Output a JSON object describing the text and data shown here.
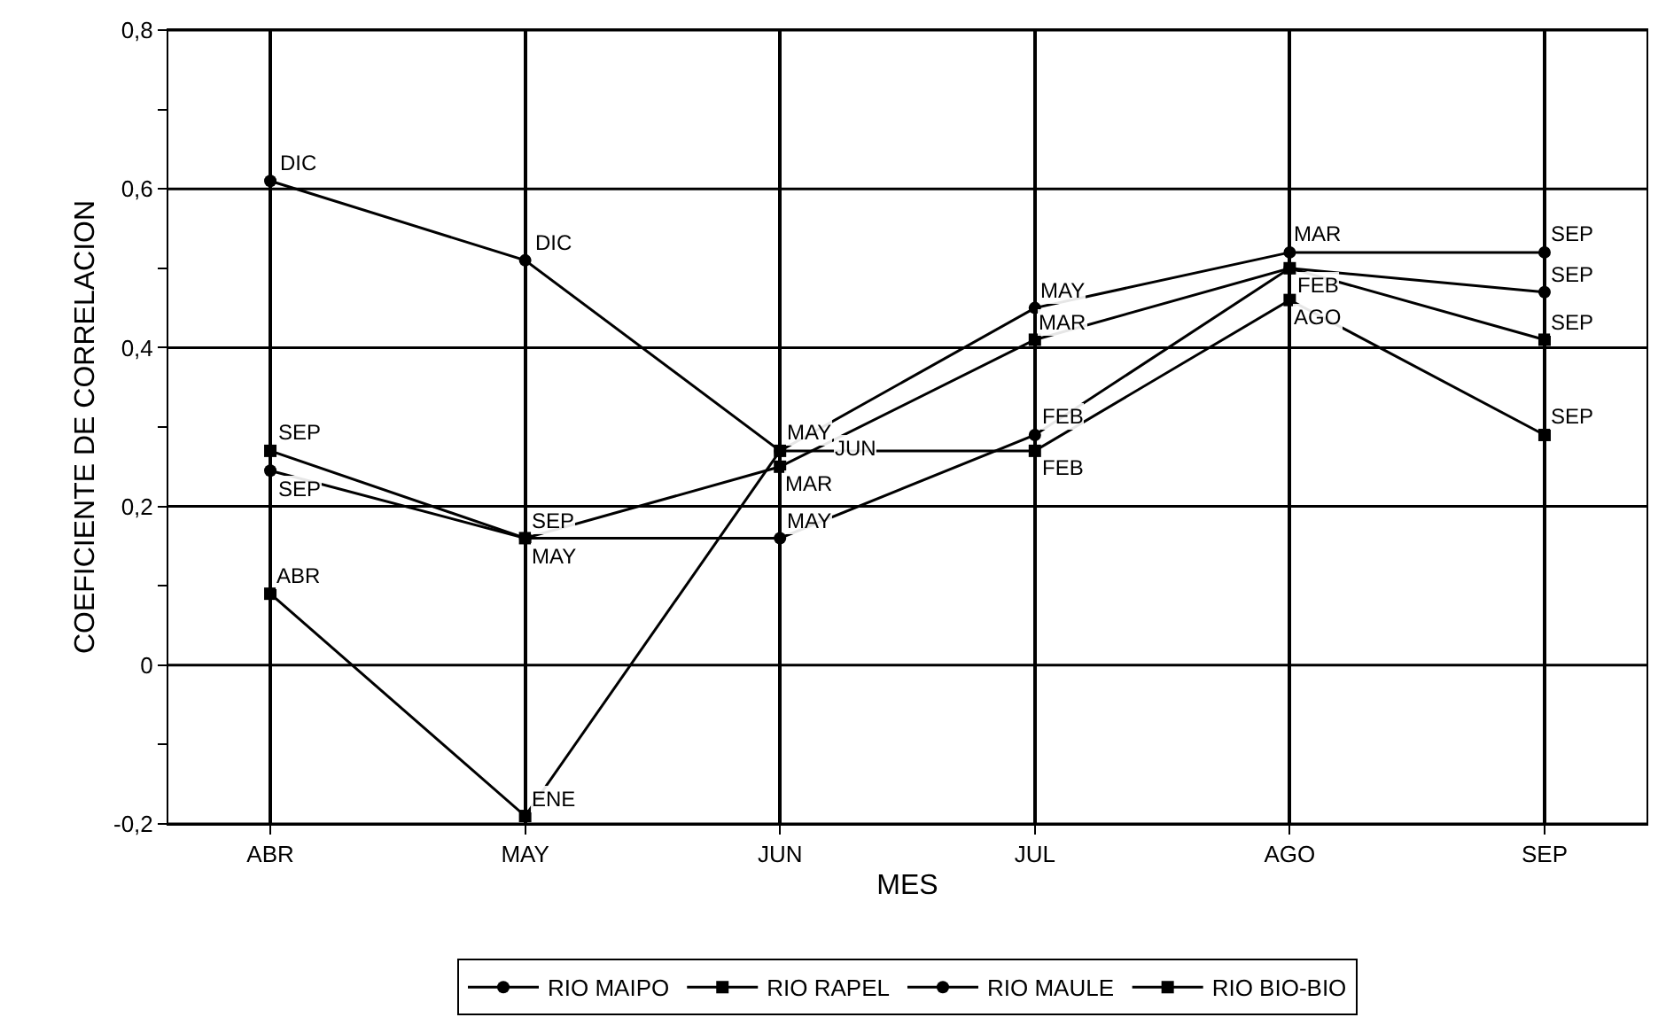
{
  "chart_data": {
    "type": "line",
    "xlabel": "MES",
    "ylabel": "COEFICIENTE DE CORRELACION",
    "categories": [
      "ABR",
      "MAY",
      "JUN",
      "JUL",
      "AGO",
      "SEP"
    ],
    "series": [
      {
        "name": "RIO MAIPO",
        "color": "#000000",
        "marker": "circle",
        "values": [
          0.245,
          0.16,
          0.16,
          0.29,
          0.5,
          0.47
        ]
      },
      {
        "name": "RIO RAPEL",
        "color": "#000000",
        "marker": "square",
        "values": [
          0.27,
          0.16,
          0.25,
          0.41,
          0.5,
          0.41
        ]
      },
      {
        "name": "RIO MAULE",
        "color": "#000000",
        "marker": "circle",
        "values": [
          0.61,
          0.51,
          0.27,
          0.45,
          0.52,
          0.52
        ]
      },
      {
        "name": "RIO BIO-BIO",
        "color": "#000000",
        "marker": "square",
        "values": [
          0.09,
          -0.19,
          0.27,
          0.27,
          0.46,
          0.29
        ]
      }
    ],
    "ylim": [
      -0.2,
      0.8
    ],
    "yticks": [
      {
        "value": -0.2,
        "label": "-0,2"
      },
      {
        "value": -0.1,
        "label": null
      },
      {
        "value": 0,
        "label": "0"
      },
      {
        "value": 0.1,
        "label": null
      },
      {
        "value": 0.2,
        "label": "0,2"
      },
      {
        "value": 0.3,
        "label": null
      },
      {
        "value": 0.4,
        "label": "0,4"
      },
      {
        "value": 0.5,
        "label": null
      },
      {
        "value": 0.6,
        "label": "0,6"
      },
      {
        "value": 0.7,
        "label": null
      },
      {
        "value": 0.8,
        "label": "0,8"
      }
    ],
    "grid": true,
    "legend": "bottom",
    "line_style": "solid",
    "annotations": [
      {
        "text": "DIC",
        "x": "ABR",
        "y": 0.61
      },
      {
        "text": "DIC",
        "x": "MAY",
        "y": 0.51
      },
      {
        "text": "SEP",
        "x": "ABR",
        "y": 0.27
      },
      {
        "text": "SEP",
        "x": "ABR",
        "y": 0.245
      },
      {
        "text": "ABR",
        "x": "ABR",
        "y": 0.09
      },
      {
        "text": "SEP",
        "x": "MAY",
        "y": 0.16
      },
      {
        "text": "MAY",
        "x": "MAY",
        "y": 0.16
      },
      {
        "text": "ENE",
        "x": "MAY",
        "y": -0.19
      },
      {
        "text": "MAY",
        "x": "JUN",
        "y": 0.27
      },
      {
        "text": "MAR",
        "x": "JUN",
        "y": 0.25
      },
      {
        "text": "JUN",
        "x": "JUN",
        "y": 0.25
      },
      {
        "text": "MAY",
        "x": "JUN",
        "y": 0.16
      },
      {
        "text": "MAY",
        "x": "JUL",
        "y": 0.45
      },
      {
        "text": "MAR",
        "x": "JUL",
        "y": 0.41
      },
      {
        "text": "FEB",
        "x": "JUL",
        "y": 0.29
      },
      {
        "text": "FEB",
        "x": "JUL",
        "y": 0.27
      },
      {
        "text": "MAR",
        "x": "AGO",
        "y": 0.52
      },
      {
        "text": "FEB",
        "x": "AGO",
        "y": 0.5
      },
      {
        "text": "AGO",
        "x": "AGO",
        "y": 0.46
      },
      {
        "text": "SEP",
        "x": "SEP",
        "y": 0.52
      },
      {
        "text": "SEP",
        "x": "SEP",
        "y": 0.47
      },
      {
        "text": "SEP",
        "x": "SEP",
        "y": 0.41
      },
      {
        "text": "SEP",
        "x": "SEP",
        "y": 0.29
      }
    ]
  }
}
